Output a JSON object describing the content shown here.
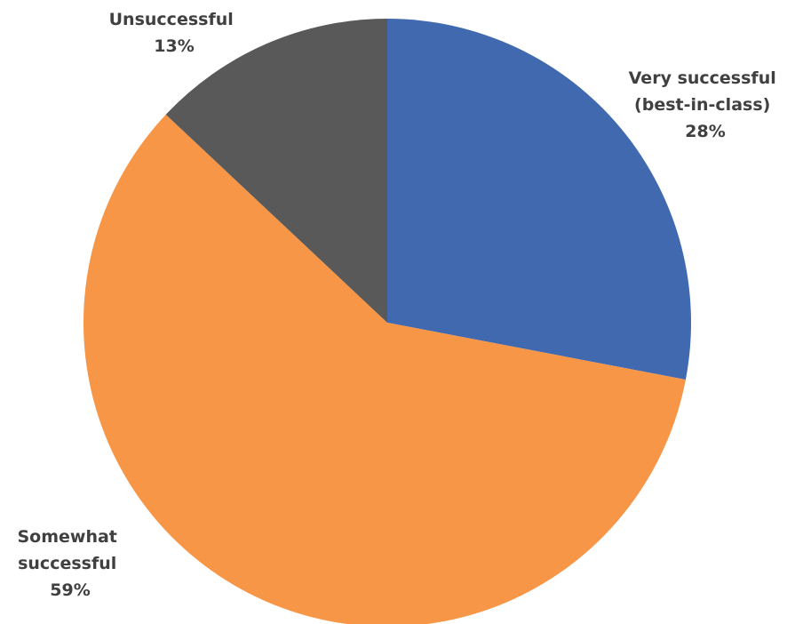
{
  "chart_data": {
    "type": "pie",
    "title": "",
    "start_angle_deg": 0,
    "direction": "clockwise",
    "slices": [
      {
        "label_lines": [
          "Very successful",
          "(best-in-class)"
        ],
        "pct_label": "28%",
        "value": 28,
        "color": "#4169b0"
      },
      {
        "label_lines": [
          "Somewhat",
          "successful"
        ],
        "pct_label": "59%",
        "value": 59,
        "color": "#f79646"
      },
      {
        "label_lines": [
          "Unsuccessful"
        ],
        "pct_label": "13%",
        "value": 13,
        "color": "#595959"
      }
    ]
  }
}
